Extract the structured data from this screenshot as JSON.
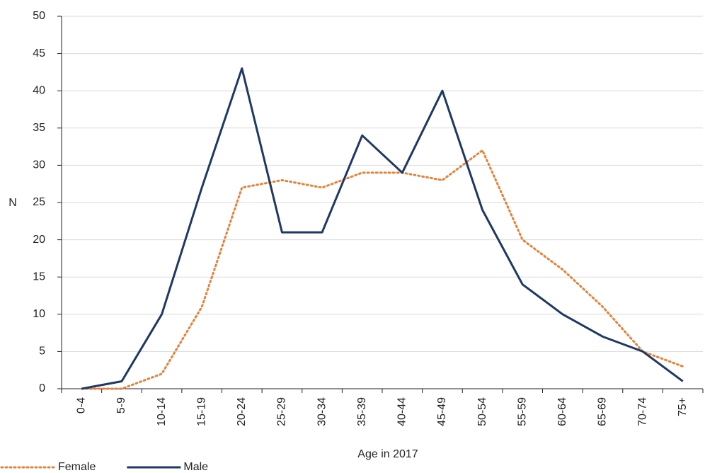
{
  "chart_data": {
    "type": "line",
    "x_label": "Age in 2017",
    "y_label": "N",
    "categories": [
      "0-4",
      "5-9",
      "10-14",
      "15-19",
      "20-24",
      "25-29",
      "30-34",
      "35-39",
      "40-44",
      "45-49",
      "50-54",
      "55-59",
      "60-64",
      "65-69",
      "70-74",
      "75+"
    ],
    "series": [
      {
        "name": "Female",
        "color": "#e5823a",
        "dash": "dotted",
        "values": [
          0,
          0,
          2,
          11,
          27,
          28,
          27,
          29,
          29,
          28,
          32,
          20,
          16,
          11,
          5,
          3
        ]
      },
      {
        "name": "Male",
        "color": "#1f3864",
        "dash": "solid",
        "values": [
          0,
          1,
          10,
          27,
          43,
          21,
          21,
          34,
          29,
          40,
          24,
          14,
          10,
          7,
          5,
          1
        ]
      }
    ],
    "ylim": [
      0,
      50
    ],
    "yticks": [
      0,
      5,
      10,
      15,
      20,
      25,
      30,
      35,
      40,
      45,
      50
    ],
    "grid": true,
    "legend": "bottom-left"
  }
}
